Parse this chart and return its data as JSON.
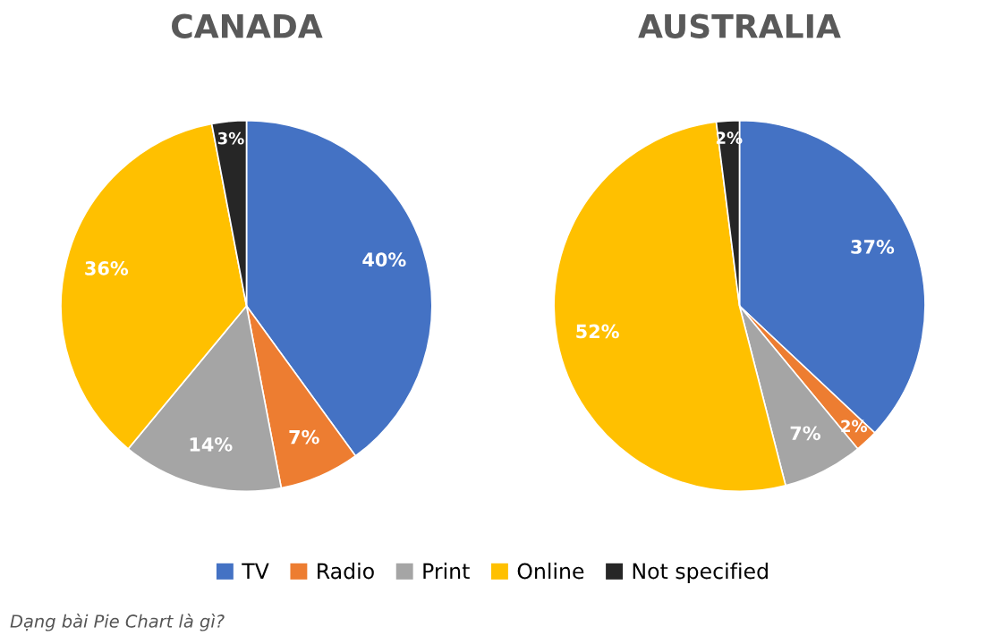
{
  "chart_data": [
    {
      "type": "pie",
      "title": "CANADA",
      "categories": [
        "TV",
        "Radio",
        "Print",
        "Online",
        "Not specified"
      ],
      "values": [
        40,
        7,
        14,
        36,
        3
      ],
      "value_labels": [
        "40%",
        "7%",
        "14%",
        "36%",
        "3%"
      ],
      "colors": [
        "#4472c4",
        "#ed7d31",
        "#a5a5a5",
        "#ffc000",
        "#262626"
      ],
      "legend": "bottom"
    },
    {
      "type": "pie",
      "title": "AUSTRALIA",
      "categories": [
        null,
        null,
        null,
        null,
        null
      ],
      "values": [
        37,
        2,
        7,
        52,
        2
      ],
      "value_labels": [
        "37%",
        "2%",
        "7%",
        "52%",
        "2%"
      ],
      "colors": [
        "#4472c4",
        "#ed7d31",
        "#a5a5a5",
        "#ffc000",
        "#262626"
      ],
      "annotations": [
        "Dạng bài Pie Chart là gì?"
      ]
    }
  ]
}
